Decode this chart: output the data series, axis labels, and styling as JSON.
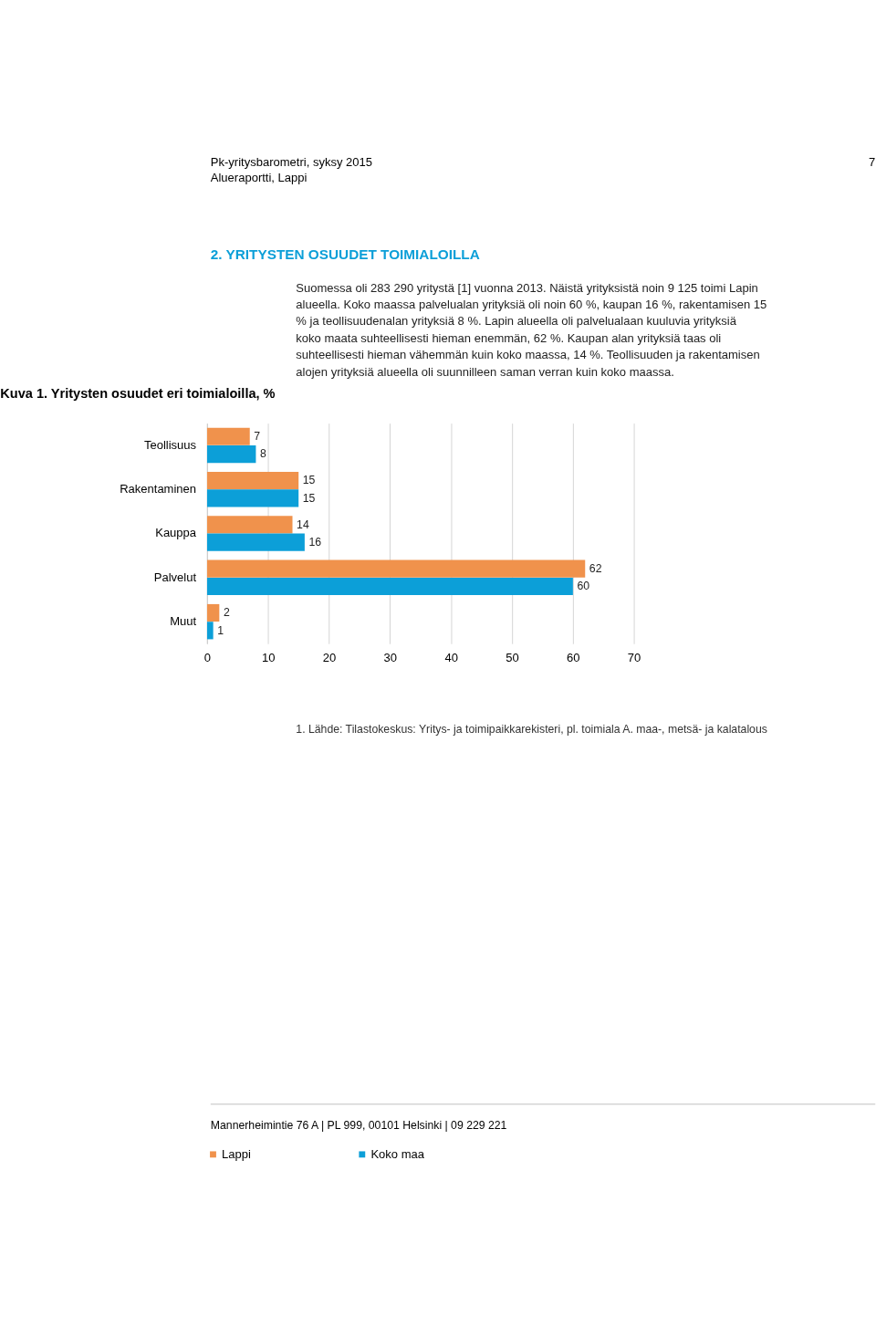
{
  "chart_data": {
    "type": "bar",
    "orientation": "horizontal",
    "title": "Kuva 1. Yritysten osuudet eri toimialoilla, %",
    "categories": [
      "Teollisuus",
      "Rakentaminen",
      "Kauppa",
      "Palvelut",
      "Muut"
    ],
    "series": [
      {
        "name": "Lappi",
        "color": "#f0924c",
        "values": [
          7,
          15,
          14,
          62,
          2
        ]
      },
      {
        "name": "Koko maa",
        "color": "#0c9fd8",
        "values": [
          8,
          15,
          16,
          60,
          1
        ]
      }
    ],
    "xlim": [
      0,
      70
    ],
    "xticks": [
      0,
      10,
      20,
      30,
      40,
      50,
      60,
      70
    ],
    "grid": "x",
    "legend": "bottom",
    "data_labels": true,
    "annotations": [
      "Pk-yritysbarometri, syksy 2015",
      "Alueraportti, Lappi",
      "7",
      "2. YRITYSTEN OSUUDET TOIMIALOILLA",
      "Suomessa oli 283 290 yritystä [1] vuonna 2013. Näistä yrityksistä noin 9 125 toimi Lapin alueella. Koko maassa palvelualan yrityksiä oli noin 60 %, kaupan 16 %, rakentamisen 15 % ja teollisuudenalan yrityksiä 8 %. Lapin alueella oli palvelualaan kuuluvia yrityksiä koko maata suhteellisesti hieman enemmän, 62 %. Kaupan alan yrityksiä taas oli suhteellisesti hieman vähemmän kuin koko maassa, 14 %. Teollisuuden ja rakentamisen alojen yrityksiä alueella oli suunnilleen saman verran kuin koko maassa.",
      "1. Lähde: Tilastokeskus: Yritys- ja toimipaikkarekisteri, pl. toimiala A. maa-, metsä- ja kalatalous",
      "Mannerheimintie 76 A | PL 999, 00101 Helsinki | 09 229 221"
    ]
  }
}
